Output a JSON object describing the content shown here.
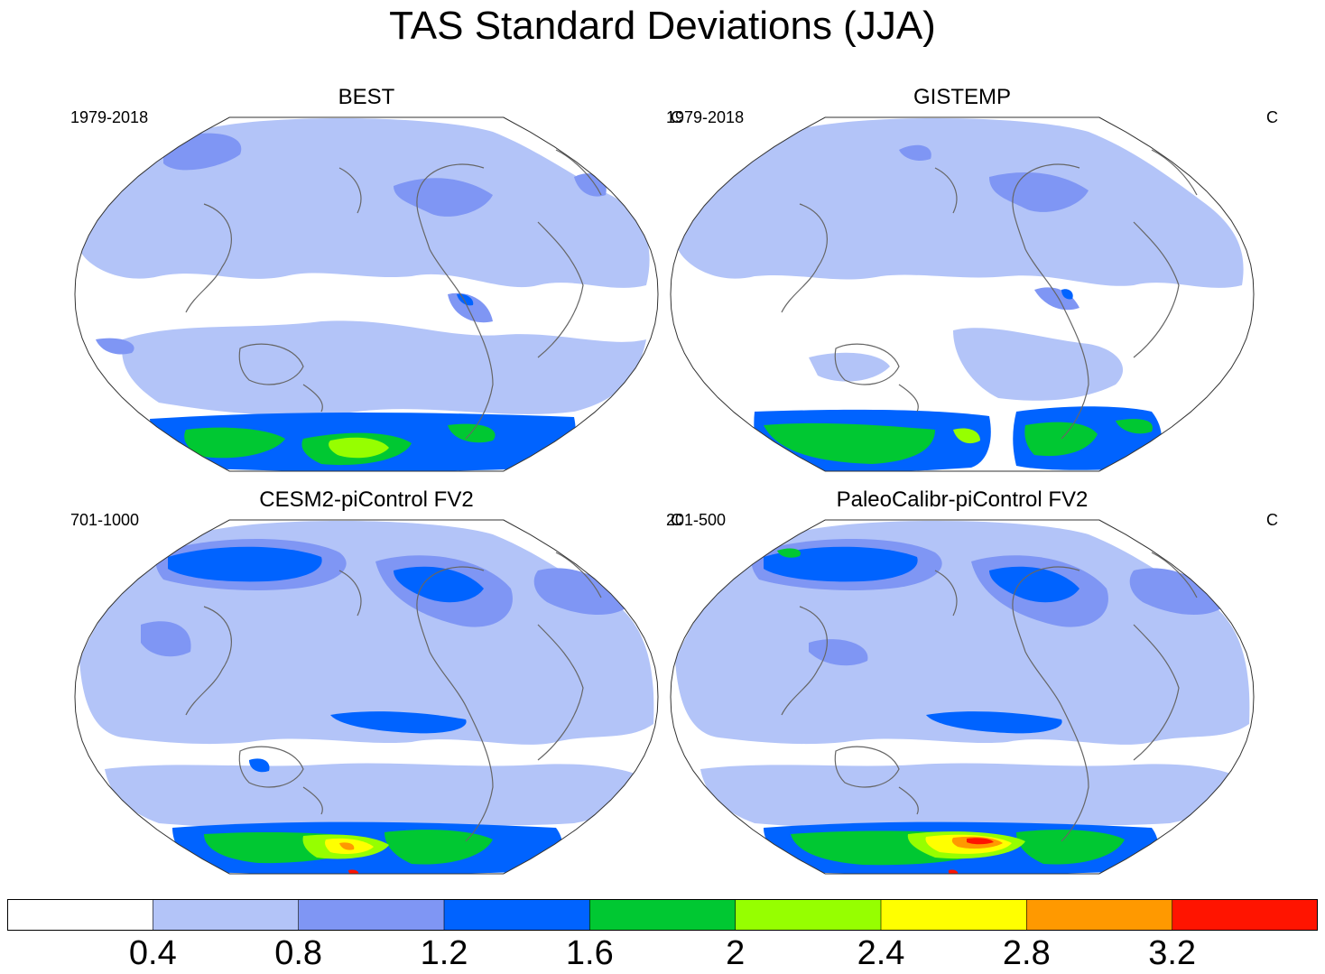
{
  "figure": {
    "title": "TAS Standard Deviations (JJA)"
  },
  "panels": [
    {
      "title": "BEST",
      "period": "1979-2018",
      "unit": "C",
      "style": "obs1"
    },
    {
      "title": "GISTEMP",
      "period": "1979-2018",
      "unit": "C",
      "style": "obs2"
    },
    {
      "title": "CESM2-piControl FV2",
      "period": "701-1000",
      "unit": "C",
      "style": "model1"
    },
    {
      "title": "PaleoCalibr-piControl FV2",
      "period": "201-500",
      "unit": "C",
      "style": "model2"
    }
  ],
  "colorbar": {
    "colors": [
      "#ffffff",
      "#b3c4f8",
      "#7f96f4",
      "#0063ff",
      "#00c832",
      "#96ff00",
      "#ffff00",
      "#ff9900",
      "#ff1400"
    ],
    "tick_labels": [
      "0.4",
      "0.8",
      "1.2",
      "1.6",
      "2",
      "2.4",
      "2.8",
      "3.2"
    ]
  }
}
